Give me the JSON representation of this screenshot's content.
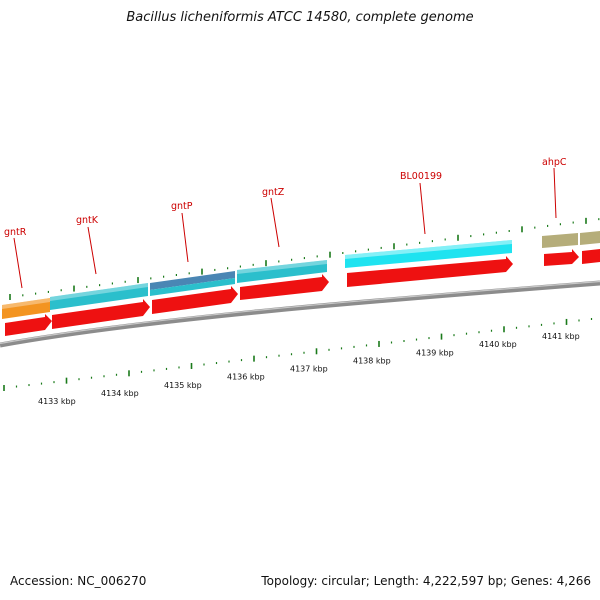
{
  "title": "Bacillus licheniformis ATCC 14580, complete genome",
  "footer": {
    "accession": "Accession: NC_006270",
    "summary": "Topology: circular; Length: 4,222,597 bp; Genes: 4,266"
  },
  "colors": {
    "backbone": "#8c8c8c",
    "cds": "#ee1111",
    "orange": "#f39420",
    "teal": "#2bbfcc",
    "steel": "#4a86b4",
    "cyan": "#1fe3f0",
    "khaki": "#b5ad7a",
    "label": "#cc0000",
    "tick": "#1a7a1a"
  },
  "gene_labels": [
    {
      "text": "gntR"
    },
    {
      "text": "gntK"
    },
    {
      "text": "gntP"
    },
    {
      "text": "gntZ"
    },
    {
      "text": "BL00199"
    },
    {
      "text": "ahpC"
    }
  ],
  "kbp_labels": [
    "4133 kbp",
    "4134 kbp",
    "4135 kbp",
    "4136 kbp",
    "4137 kbp",
    "4138 kbp",
    "4139 kbp",
    "4140 kbp",
    "4141 kbp"
  ]
}
